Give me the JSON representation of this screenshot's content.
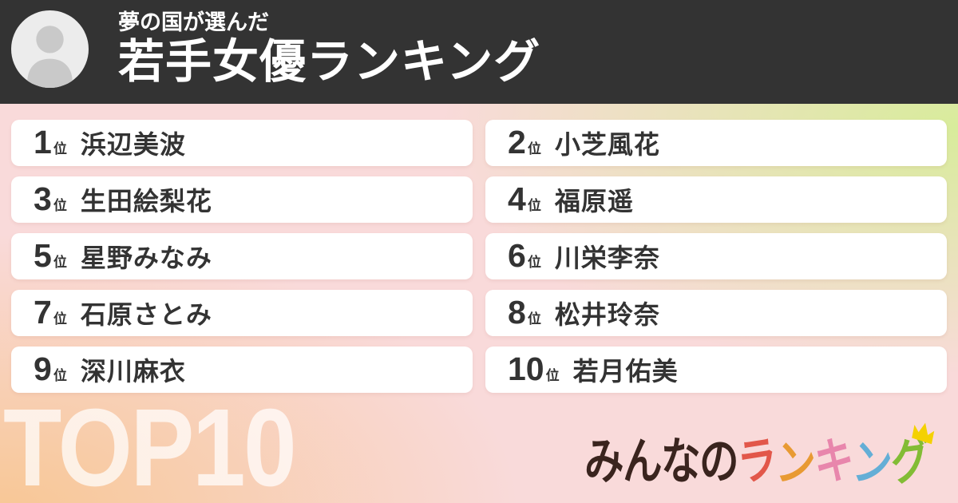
{
  "header": {
    "subtitle": "夢の国が選んだ",
    "title": "若手女優ランキング",
    "avatar_icon": "person-icon"
  },
  "ranking": {
    "rank_suffix": "位",
    "items": [
      {
        "rank": "1",
        "name": "浜辺美波"
      },
      {
        "rank": "2",
        "name": "小芝風花"
      },
      {
        "rank": "3",
        "name": "生田絵梨花"
      },
      {
        "rank": "4",
        "name": "福原遥"
      },
      {
        "rank": "5",
        "name": "星野みなみ"
      },
      {
        "rank": "6",
        "name": "川栄李奈"
      },
      {
        "rank": "7",
        "name": "石原さとみ"
      },
      {
        "rank": "8",
        "name": "松井玲奈"
      },
      {
        "rank": "9",
        "name": "深川麻衣"
      },
      {
        "rank": "10",
        "name": "若月佑美"
      }
    ]
  },
  "footer": {
    "top10_label": "TOP10",
    "logo": {
      "prefix": "みんなの",
      "colored_chars": [
        {
          "char": "ラ",
          "color": "#e2574a"
        },
        {
          "char": "ン",
          "color": "#e89a33"
        },
        {
          "char": "キ",
          "color": "#e886ac"
        },
        {
          "char": "ン",
          "color": "#64aed6"
        },
        {
          "char": "グ",
          "color": "#82bc35"
        }
      ],
      "crown_color": "#f4d100"
    }
  },
  "colors": {
    "header_bg": "#333333",
    "card_bg": "#ffffff",
    "card_text": "#333333",
    "bg_pink": "#f9dada",
    "bg_green": "#d8ec9b",
    "bg_orange": "#f8c795",
    "top10_text": "rgba(255,255,255,0.72)",
    "avatar_bg": "#ececec",
    "avatar_glyph": "#c9c9c9",
    "logo_prefix": "#3a241e"
  }
}
